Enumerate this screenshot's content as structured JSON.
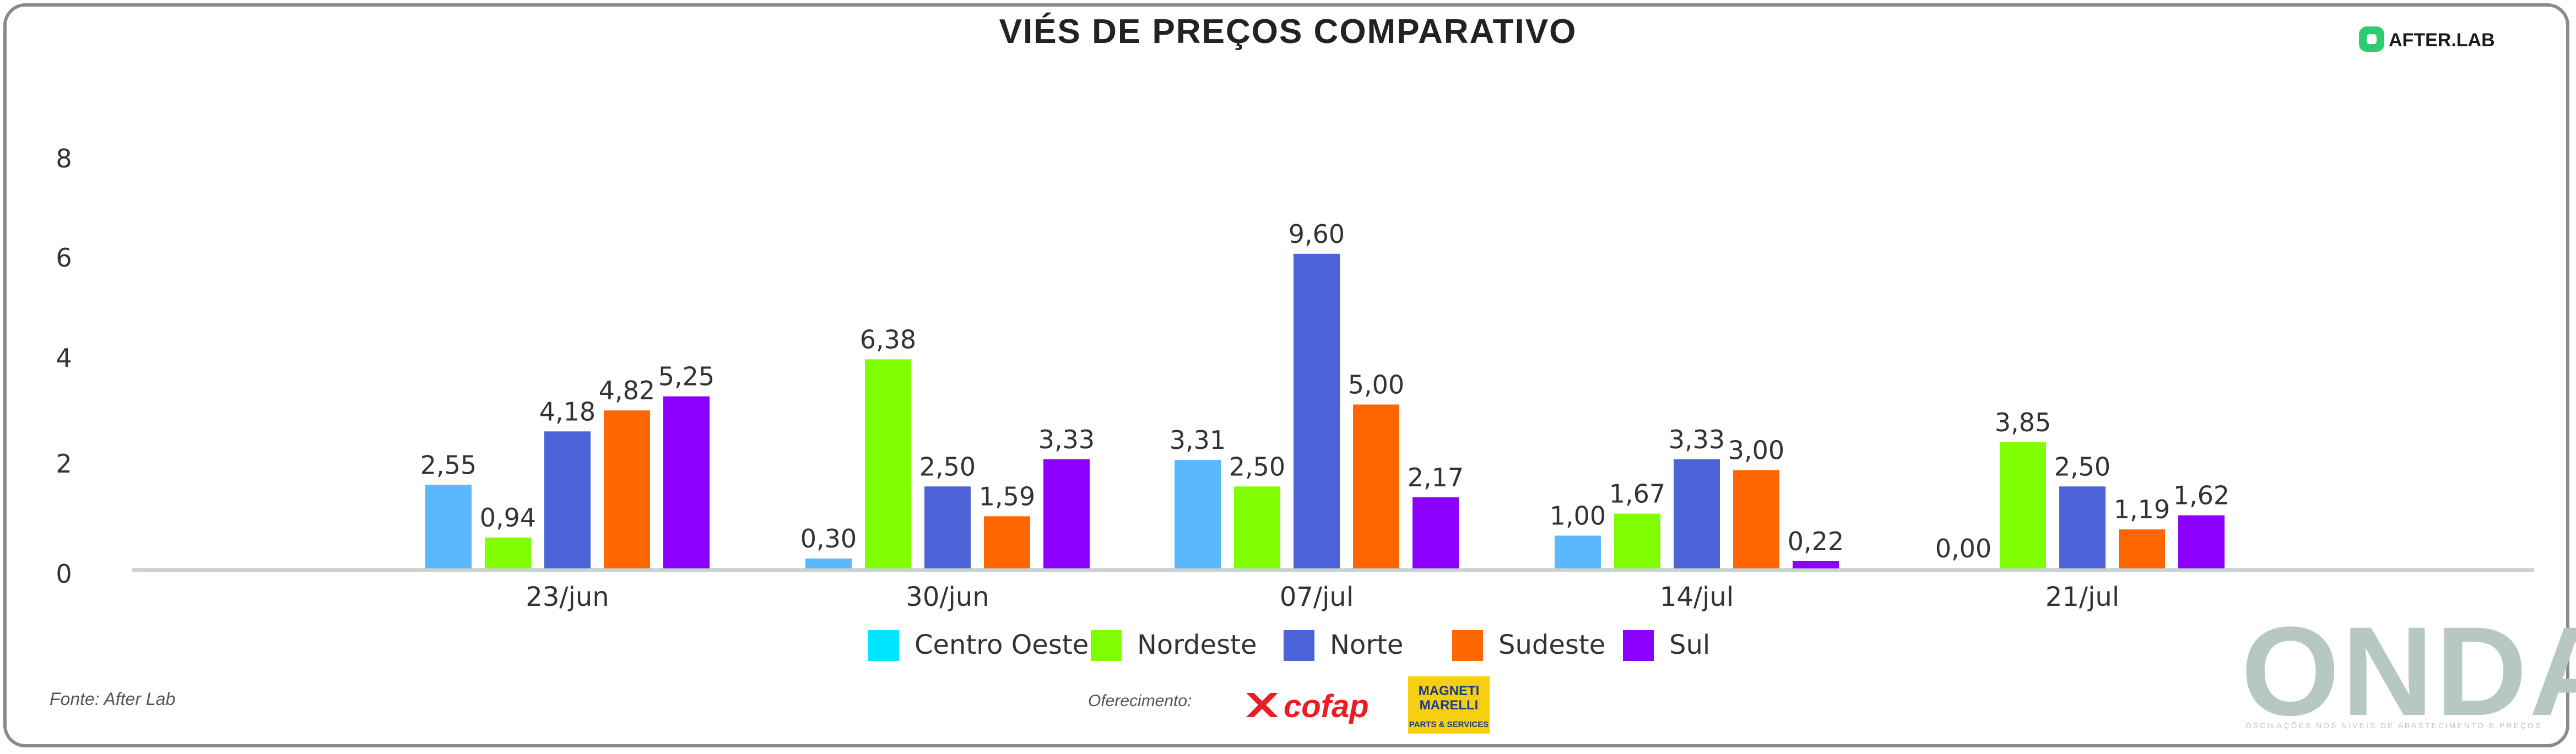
{
  "header": {
    "title": "VIÉS DE PREÇOS COMPARATIVO",
    "brand": "AFTER.LAB"
  },
  "footer": {
    "source": "Fonte: After Lab",
    "sponsors_label": "Oferecimento:",
    "cofap": "cofap",
    "magneti_line1": "MAGNETI",
    "magneti_line2": "MARELLI",
    "magneti_line3": "PARTS & SERVICES",
    "onda": "ONDA",
    "onda_tagline": "OSCILAÇÕES NOS NÍVEIS DE ABASTECIMENTO E PREÇOS"
  },
  "colors": {
    "Centro Oeste": "#5bb8ff",
    "Nordeste": "#7fff00",
    "Norte": "#4b63d6",
    "Sudeste": "#ff6600",
    "Sul": "#8b00ff",
    "axis": "#c8d2d0",
    "cofap": "#ea1c24",
    "magneti_bg": "#f6cf10",
    "onda": "#b7c8c3"
  },
  "chart_data": {
    "type": "bar",
    "title": "VIÉS DE PREÇOS COMPARATIVO",
    "categories": [
      "23/jun",
      "30/jun",
      "07/jul",
      "14/jul",
      "21/jul"
    ],
    "series": [
      {
        "name": "Centro Oeste",
        "values": [
          2.55,
          0.3,
          3.31,
          1.0,
          0.0
        ],
        "labels": [
          "2,55",
          "0,30",
          "3,31",
          "1,00",
          "0,00"
        ]
      },
      {
        "name": "Nordeste",
        "values": [
          0.94,
          6.38,
          2.5,
          1.67,
          3.85
        ],
        "labels": [
          "0,94",
          "6,38",
          "2,50",
          "1,67",
          "3,85"
        ]
      },
      {
        "name": "Norte",
        "values": [
          4.18,
          2.5,
          9.6,
          3.33,
          2.5
        ],
        "labels": [
          "4,18",
          "2,50",
          "9,60",
          "3,33",
          "2,50"
        ]
      },
      {
        "name": "Sudeste",
        "values": [
          4.82,
          1.59,
          5.0,
          3.0,
          1.19
        ],
        "labels": [
          "4,82",
          "1,59",
          "5,00",
          "3,00",
          "1,19"
        ]
      },
      {
        "name": "Sul",
        "values": [
          5.25,
          3.33,
          2.17,
          0.22,
          1.62
        ],
        "labels": [
          "5,25",
          "3,33",
          "2,17",
          "0,22",
          "1,62"
        ]
      }
    ],
    "yticks": [
      "0",
      "2",
      "4",
      "6",
      "8"
    ],
    "legend_position": "bottom",
    "grid": false
  }
}
